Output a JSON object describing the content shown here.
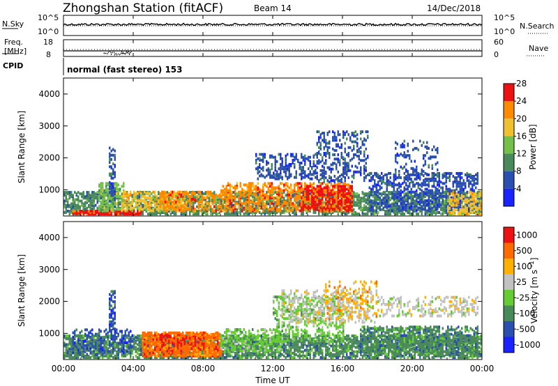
{
  "header": {
    "station": "Zhongshan Station (fitACF)",
    "beam": "Beam 14",
    "date": "14/Dec/2018"
  },
  "summary": {
    "nsky_label": "N.Sky",
    "nsky_ticks": [
      "10^5",
      "10^0"
    ],
    "nsearch_label": "N.Search",
    "nsearch_ticks": [
      "10^5",
      "10^0"
    ],
    "freq_label_1": "Freq.",
    "freq_label_2": "[MHz]",
    "freq_ticks": [
      "18",
      "8"
    ],
    "nave_label": "Nave",
    "nave_ticks": [
      "60",
      "0"
    ],
    "cpid_label": "CPID",
    "cpid_text": "normal (fast stereo) 153"
  },
  "time_axis": {
    "xlabel": "Time UT",
    "tick_labels": [
      "00:00",
      "04:00",
      "08:00",
      "12:00",
      "16:00",
      "20:00",
      "00:00"
    ],
    "xlim_hours": [
      0,
      24
    ]
  },
  "chart_data": [
    {
      "type": "heatmap",
      "ylabel": "Slant Range [km]",
      "ylim": [
        180,
        4500
      ],
      "y_ticks": [
        1000,
        2000,
        3000,
        4000
      ],
      "colorbar": {
        "label": "Power [dB]",
        "levels": [
          "4",
          "8",
          "12",
          "16",
          "20",
          "24",
          "28"
        ],
        "colors": [
          "#1a22ff",
          "#2a4fb0",
          "#4a8a5a",
          "#74c04a",
          "#f0c030",
          "#ff8a00",
          "#ee1111"
        ]
      },
      "regions": [
        {
          "t0": 0.0,
          "t1": 24.0,
          "r0": 200,
          "r1": 900,
          "level": 2,
          "density": 0.55
        },
        {
          "t0": 0.5,
          "t1": 4.5,
          "r0": 200,
          "r1": 320,
          "level": 6,
          "density": 0.75
        },
        {
          "t0": 2.0,
          "t1": 3.5,
          "r0": 300,
          "r1": 1200,
          "level": 3,
          "density": 0.5
        },
        {
          "t0": 2.6,
          "t1": 3.0,
          "r0": 600,
          "r1": 2300,
          "level": 1,
          "density": 0.45
        },
        {
          "t0": 3.3,
          "t1": 7.0,
          "r0": 300,
          "r1": 900,
          "level": 4,
          "density": 0.45
        },
        {
          "t0": 5.5,
          "t1": 9.5,
          "r0": 300,
          "r1": 900,
          "level": 5,
          "density": 0.35
        },
        {
          "t0": 9.0,
          "t1": 16.5,
          "r0": 300,
          "r1": 1200,
          "level": 5,
          "density": 0.4
        },
        {
          "t0": 13.5,
          "t1": 16.5,
          "r0": 300,
          "r1": 1100,
          "level": 6,
          "density": 0.4
        },
        {
          "t0": 11.0,
          "t1": 14.5,
          "r0": 1300,
          "r1": 2100,
          "level": 1,
          "density": 0.35
        },
        {
          "t0": 14.5,
          "t1": 17.5,
          "r0": 1200,
          "r1": 2800,
          "level": 1,
          "density": 0.25
        },
        {
          "t0": 17.5,
          "t1": 23.8,
          "r0": 300,
          "r1": 1500,
          "level": 1,
          "density": 0.35
        },
        {
          "t0": 19.0,
          "t1": 21.5,
          "r0": 1400,
          "r1": 2500,
          "level": 1,
          "density": 0.2
        },
        {
          "t0": 22.0,
          "t1": 24.0,
          "r0": 200,
          "r1": 900,
          "level": 4,
          "density": 0.45
        }
      ]
    },
    {
      "type": "heatmap",
      "ylabel": "Slant Range [km]",
      "ylim": [
        180,
        4500
      ],
      "y_ticks": [
        1000,
        2000,
        3000,
        4000
      ],
      "colorbar": {
        "label": "Velocity [m s^-1]",
        "levels": [
          "1000",
          "500",
          "100",
          "25",
          "-25",
          "-100",
          "-500",
          "-1000"
        ],
        "colors": [
          "#1a22ff",
          "#2a4fb0",
          "#4a8a5a",
          "#66cc33",
          "#c2c2c2",
          "#ffb000",
          "#ff6a00",
          "#ee1111"
        ]
      },
      "regions": [
        {
          "t0": 0.0,
          "t1": 24.0,
          "r0": 200,
          "r1": 900,
          "level": 2,
          "density": 0.6
        },
        {
          "t0": 0.5,
          "t1": 4.0,
          "r0": 300,
          "r1": 1100,
          "level": 1,
          "density": 0.25
        },
        {
          "t0": 2.6,
          "t1": 3.0,
          "r0": 600,
          "r1": 2300,
          "level": 1,
          "density": 0.45
        },
        {
          "t0": 4.5,
          "t1": 9.0,
          "r0": 250,
          "r1": 1000,
          "level": 6,
          "density": 0.7
        },
        {
          "t0": 5.0,
          "t1": 8.0,
          "r0": 400,
          "r1": 900,
          "level": 7,
          "density": 0.2
        },
        {
          "t0": 9.0,
          "t1": 12.5,
          "r0": 400,
          "r1": 1100,
          "level": 3,
          "density": 0.35
        },
        {
          "t0": 12.0,
          "t1": 16.0,
          "r0": 700,
          "r1": 2100,
          "level": 3,
          "density": 0.3
        },
        {
          "t0": 12.5,
          "t1": 18.0,
          "r0": 1300,
          "r1": 2300,
          "level": 4,
          "density": 0.25
        },
        {
          "t0": 15.0,
          "t1": 18.0,
          "r0": 1400,
          "r1": 2600,
          "level": 5,
          "density": 0.15
        },
        {
          "t0": 18.0,
          "t1": 23.8,
          "r0": 1500,
          "r1": 2100,
          "level": 4,
          "density": 0.25
        },
        {
          "t0": 17.0,
          "t1": 23.8,
          "r0": 300,
          "r1": 1200,
          "level": 2,
          "density": 0.45
        }
      ]
    }
  ]
}
